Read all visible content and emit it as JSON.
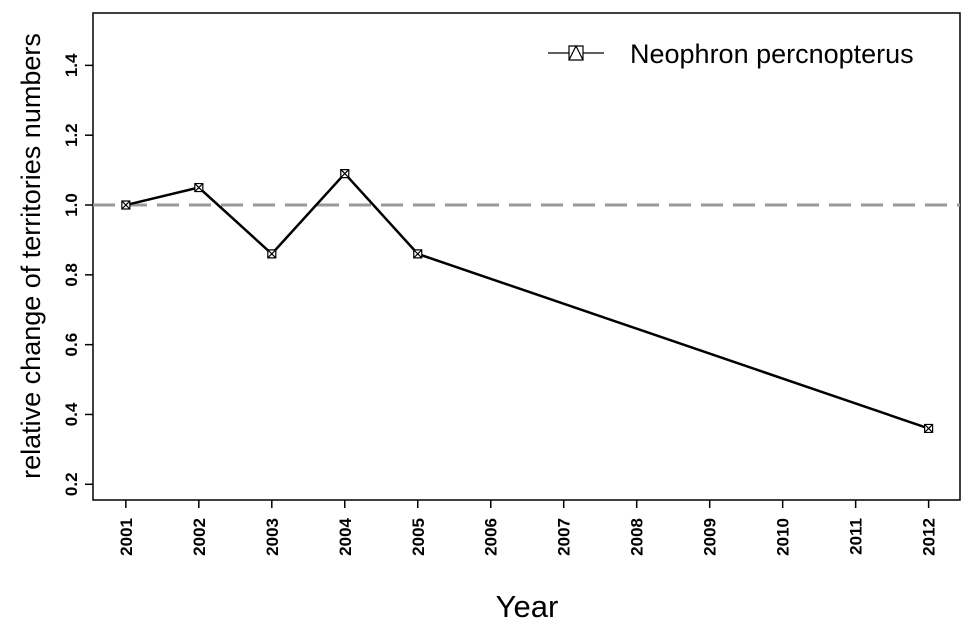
{
  "chart_data": {
    "type": "line",
    "x_label": "Year",
    "y_label": "relative change of territories numbers",
    "x": [
      2001,
      2002,
      2003,
      2004,
      2005,
      2012
    ],
    "series": [
      {
        "name": "Neophron percnopterus",
        "color": "#000000",
        "values": [
          1.0,
          1.05,
          0.86,
          1.09,
          0.86,
          0.36
        ]
      }
    ],
    "xlim": [
      2000.55,
      2012.43
    ],
    "xticks": [
      2001,
      2002,
      2003,
      2004,
      2005,
      2006,
      2007,
      2008,
      2009,
      2010,
      2011,
      2012
    ],
    "ylim": [
      0.155,
      1.55
    ],
    "yticks": [
      0.2,
      0.4,
      0.6,
      0.8,
      {
        "value": 1.0,
        "label": "1.0"
      },
      1.2,
      1.4
    ],
    "reference_line": {
      "value": 1.0,
      "color": "#999999"
    },
    "legend": "top-right",
    "grid": false
  }
}
